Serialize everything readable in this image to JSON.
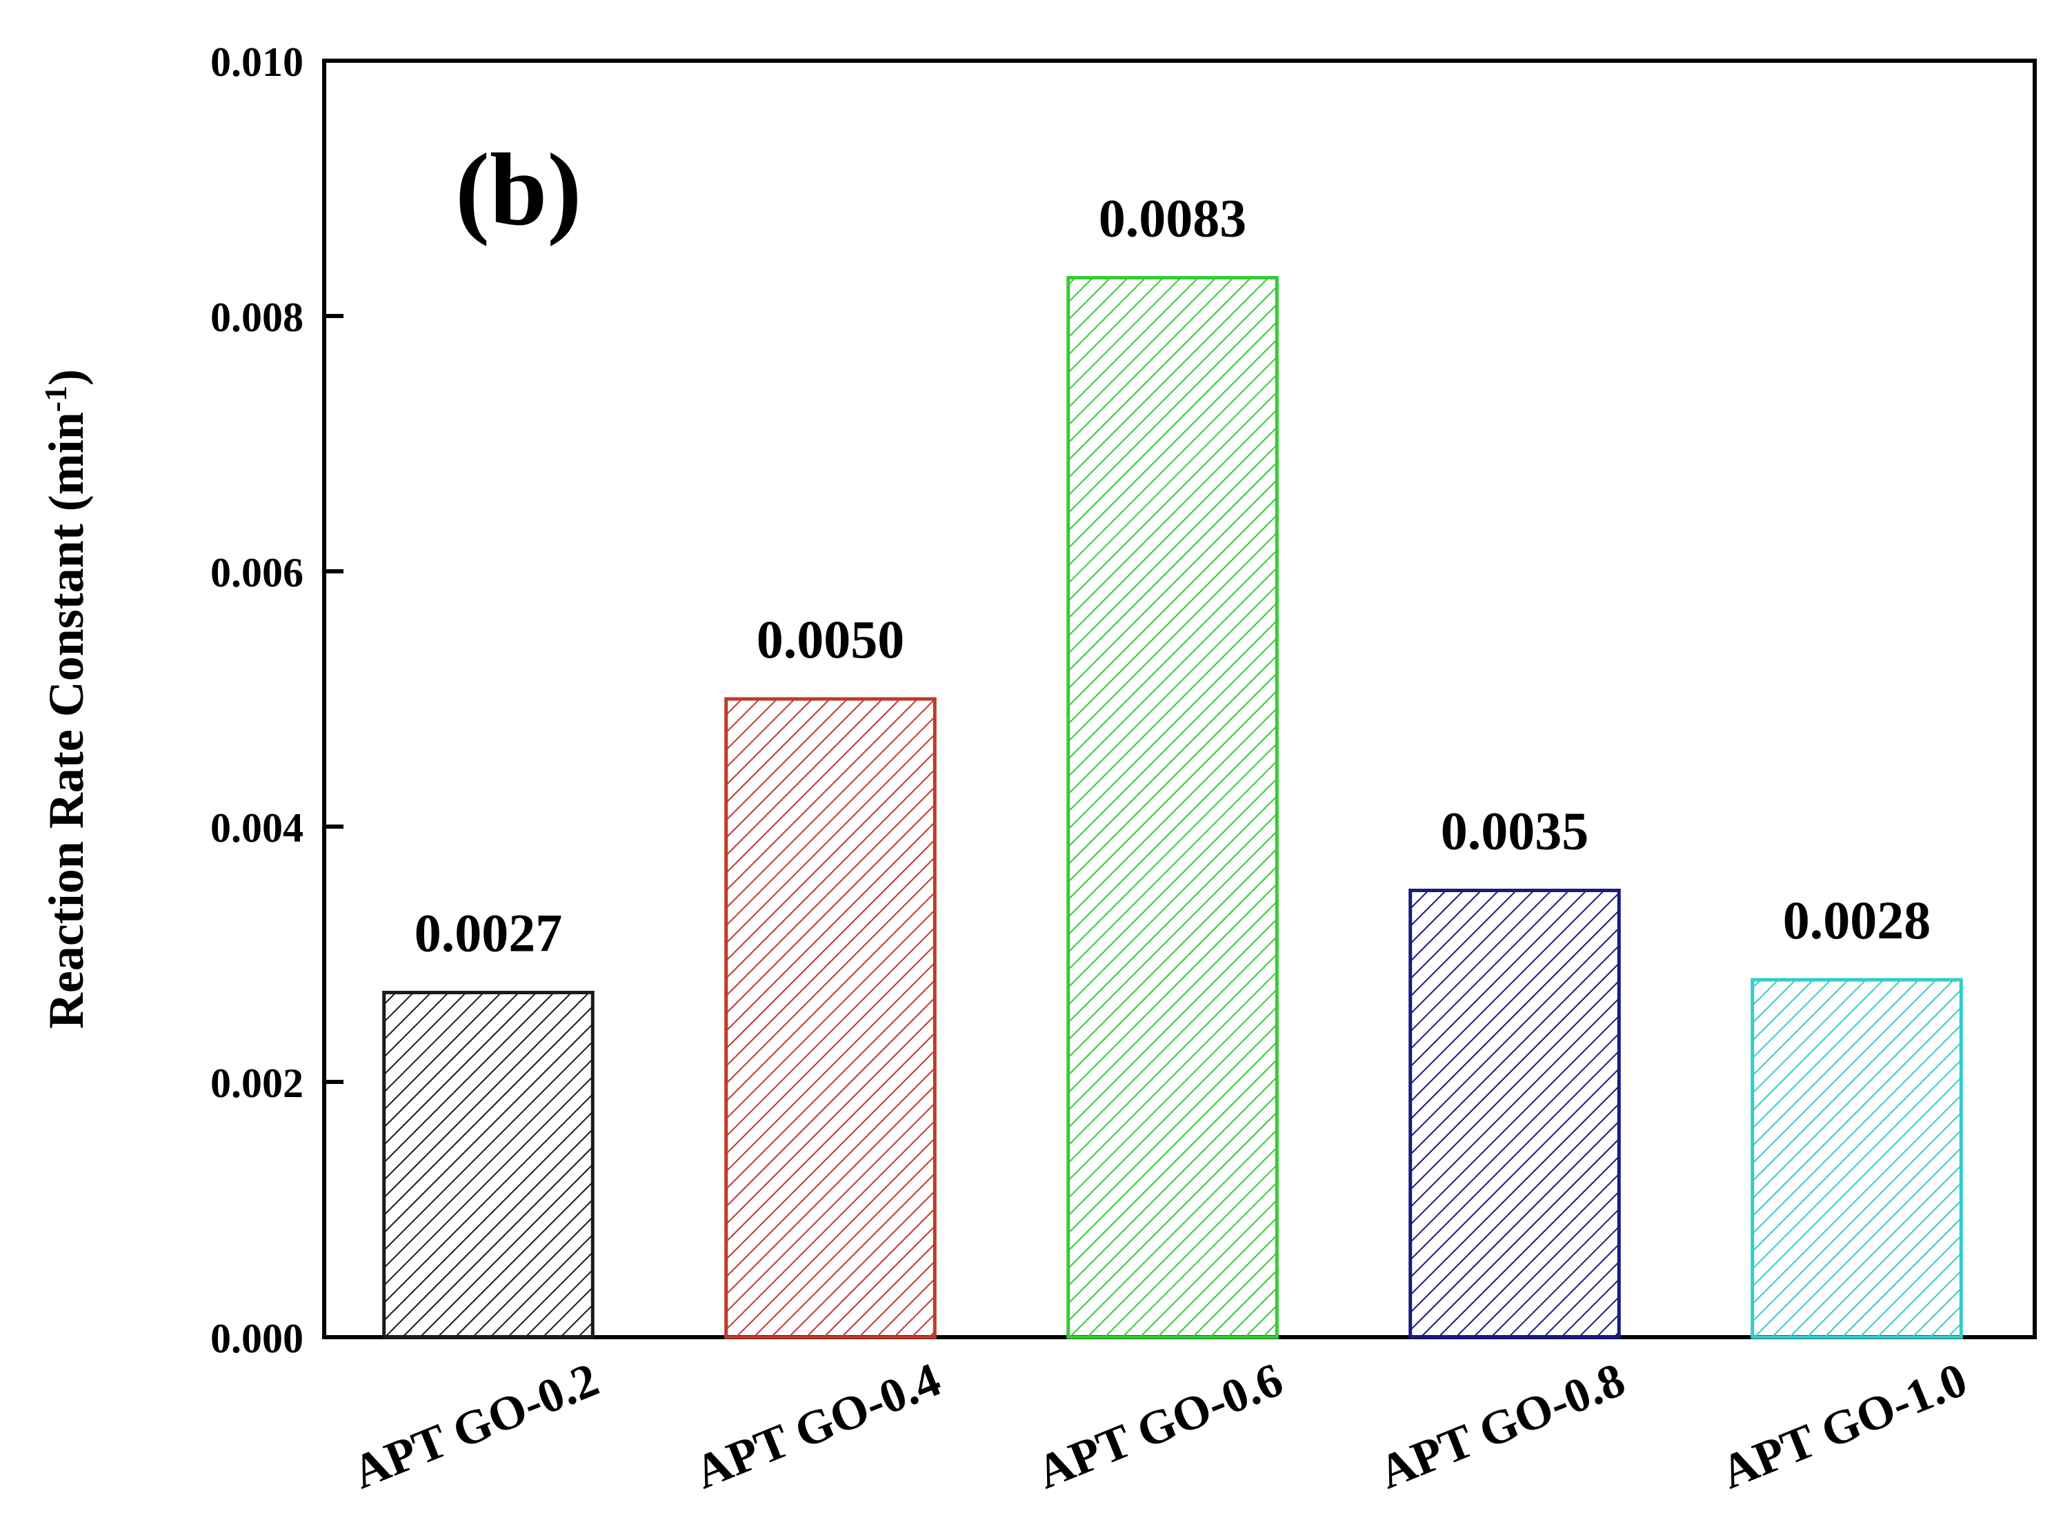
{
  "chart_data": {
    "type": "bar",
    "panel_label": "(b)",
    "title": "",
    "xlabel": "",
    "ylabel": "Reaction Rate Constant (min",
    "ylabel_superscript": "-1",
    "ylabel_close": ")",
    "categories": [
      "APT GO-0.2",
      "APT GO-0.4",
      "APT GO-0.6",
      "APT GO-0.8",
      "APT GO-1.0"
    ],
    "values": [
      0.0027,
      0.005,
      0.0083,
      0.0035,
      0.0028
    ],
    "data_labels": [
      "0.0027",
      "0.0050",
      "0.0083",
      "0.0035",
      "0.0028"
    ],
    "colors": [
      "#1a1a1a",
      "#c0392b",
      "#33cc33",
      "#1a1a80",
      "#33cccc"
    ],
    "hatch": "diagonal",
    "ylim": [
      0,
      0.01
    ],
    "yticks": [
      0.0,
      0.002,
      0.004,
      0.006,
      0.008,
      0.01
    ],
    "ytick_labels": [
      "0.000",
      "0.002",
      "0.004",
      "0.006",
      "0.008",
      "0.010"
    ],
    "grid": false,
    "legend": "none"
  }
}
